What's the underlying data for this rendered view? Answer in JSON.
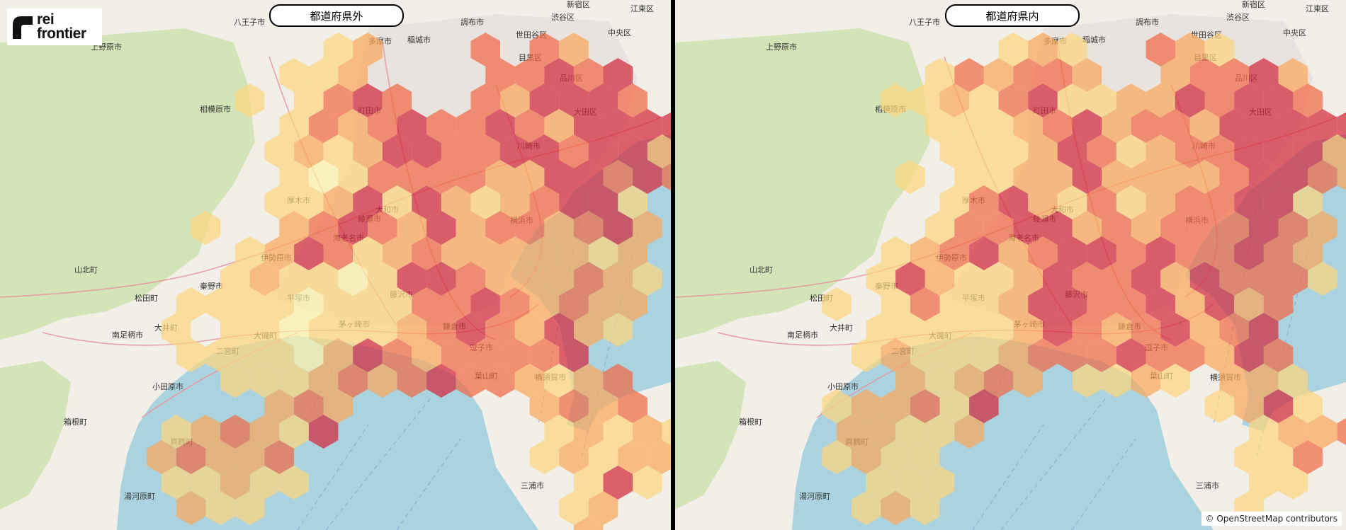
{
  "logo": {
    "line1": "rei",
    "line2": "frontier"
  },
  "panels": {
    "left": {
      "title": "都道府県外"
    },
    "right": {
      "title": "都道府県内"
    }
  },
  "attribution": "© OpenStreetMap contributors",
  "place_labels": [
    "八王子市",
    "上野原市",
    "相模原市",
    "町田市",
    "多摩市",
    "稲城市",
    "世田谷区",
    "目黒区",
    "品川区",
    "渋谷区",
    "新宿区",
    "中央区",
    "江東区",
    "調布市",
    "大田区",
    "川崎市",
    "横浜市",
    "海老名市",
    "大和市",
    "綾瀬市",
    "厚木市",
    "伊勢原市",
    "秦野市",
    "平塚市",
    "茅ヶ崎市",
    "藤沢市",
    "鎌倉市",
    "逗子市",
    "葉山町",
    "三浦市",
    "横須賀市",
    "小田原市",
    "南足柄市",
    "松田町",
    "大井町",
    "大磯町",
    "二宮町",
    "山北町",
    "湯河原町",
    "真鶴町",
    "箱根町"
  ],
  "colors": {
    "sea": "#aad3df",
    "land": "#f2efe9",
    "forest": "#cfe3b3",
    "urban": "#e6e0dd",
    "hex_scale": [
      "#fdf3a9",
      "#fcd57e",
      "#f9a75a",
      "#f06a44",
      "#d2283b"
    ]
  },
  "hex_levels_left": [
    [
      "",
      "",
      "",
      "",
      "",
      "",
      "1",
      "2",
      "",
      "",
      "",
      "3",
      "",
      "3",
      "2",
      "",
      "",
      "",
      "",
      "",
      ""
    ],
    [
      "",
      "",
      "",
      "",
      "1",
      "1",
      "2",
      "",
      "",
      "",
      "",
      "3",
      "3",
      "4",
      "3",
      "4",
      "",
      "",
      "",
      "",
      ""
    ],
    [
      "",
      "",
      "",
      "1",
      "",
      "1",
      "3",
      "4",
      "3",
      "",
      "",
      "3",
      "2",
      "4",
      "4",
      "4",
      "3",
      "",
      "",
      "",
      ""
    ],
    [
      "",
      "",
      "",
      "",
      "1",
      "3",
      "2",
      "3",
      "4",
      "3",
      "3",
      "4",
      "3",
      "2",
      "4",
      "4",
      "4",
      "4",
      "",
      "",
      ""
    ],
    [
      "",
      "",
      "",
      "",
      "1",
      "2",
      "1",
      "2",
      "4",
      "4",
      "3",
      "3",
      "4",
      "4",
      "3",
      "4",
      "4",
      "2",
      "2",
      "1",
      ""
    ],
    [
      "",
      "",
      "",
      "",
      "1",
      "0",
      "1",
      "3",
      "3",
      "3",
      "3",
      "2",
      "2",
      "4",
      "4",
      "3",
      "4",
      "3",
      "1",
      "",
      ""
    ],
    [
      "",
      "",
      "",
      "",
      "1",
      "1",
      "2",
      "4",
      "1",
      "4",
      "2",
      "1",
      "2",
      "3",
      "4",
      "4",
      "1",
      "",
      "",
      "",
      ""
    ],
    [
      "",
      "1",
      "",
      "",
      "2",
      "3",
      "4",
      "3",
      "2",
      "4",
      "2",
      "3",
      "3",
      "2",
      "3",
      "4",
      "2",
      "",
      "",
      "",
      ""
    ],
    [
      "",
      "",
      "",
      "1",
      "2",
      "4",
      "3",
      "1",
      "2",
      "3",
      "2",
      "2",
      "2",
      "2",
      "2",
      "1",
      "2",
      "",
      "",
      "",
      ""
    ],
    [
      "",
      "",
      "1",
      "2",
      "1",
      "1",
      "0",
      "1",
      "4",
      "4",
      "3",
      "2",
      "2",
      "2",
      "3",
      "2",
      "1",
      "",
      "",
      "",
      ""
    ],
    [
      "",
      "1",
      "1",
      "1",
      "1",
      "0",
      "1",
      "1",
      "1",
      "3",
      "3",
      "4",
      "3",
      "2",
      "3",
      "2",
      "2",
      "",
      "",
      "",
      ""
    ],
    [
      "1",
      "",
      "1",
      "1",
      "0",
      "1",
      "1",
      "1",
      "2",
      "3",
      "4",
      "3",
      "2",
      "4",
      "2",
      "1",
      "",
      "",
      "",
      "",
      ""
    ],
    [
      "",
      "1",
      "1",
      "1",
      "1",
      "0",
      "2",
      "4",
      "3",
      "2",
      "3",
      "3",
      "3",
      "3",
      "4",
      "",
      "",
      "",
      "",
      "",
      ""
    ],
    [
      "",
      "",
      "1",
      "1",
      "1",
      "2",
      "3",
      "2",
      "3",
      "4",
      "3",
      "3",
      "2",
      "1",
      "2",
      "3",
      "",
      "",
      "",
      "",
      ""
    ],
    [
      "",
      "",
      "",
      "",
      "2",
      "3",
      "2",
      "",
      "",
      "",
      "",
      "",
      "",
      "2",
      "3",
      "2",
      "3",
      "",
      "",
      "",
      ""
    ],
    [
      "1",
      "2",
      "3",
      "2",
      "1",
      "4",
      "",
      "",
      "",
      "",
      "",
      "",
      "",
      "1",
      "2",
      "1",
      "2",
      "1",
      "",
      "",
      ""
    ],
    [
      "2",
      "3",
      "2",
      "2",
      "3",
      "",
      "",
      "",
      "",
      "",
      "",
      "",
      "",
      "1",
      "2",
      "1",
      "2",
      "2",
      "",
      "",
      ""
    ],
    [
      "1",
      "1",
      "2",
      "1",
      "1",
      "",
      "",
      "",
      "",
      "",
      "",
      "",
      "",
      "",
      "1",
      "4",
      "1",
      "",
      "",
      "",
      ""
    ],
    [
      "",
      "2",
      "1",
      "1",
      "",
      "",
      "",
      "",
      "",
      "",
      "",
      "",
      "",
      "",
      "1",
      "2",
      "",
      "",
      "",
      "",
      ""
    ],
    [
      "",
      "",
      "",
      "",
      "",
      "",
      "",
      "",
      "",
      "",
      "",
      "",
      "",
      "",
      "2",
      "",
      "",
      "",
      "",
      "",
      ""
    ]
  ],
  "hex_levels_right": [
    [
      "",
      "",
      "",
      "",
      "",
      "",
      "1",
      "2",
      "1",
      "",
      "",
      "3",
      "2",
      "1",
      "",
      "",
      "",
      "",
      "",
      "",
      ""
    ],
    [
      "",
      "",
      "",
      "1",
      "3",
      "2",
      "3",
      "3",
      "2",
      "",
      "",
      "2",
      "3",
      "3",
      "4",
      "2",
      "",
      "",
      "",
      "",
      ""
    ],
    [
      "",
      "",
      "1",
      "1",
      "2",
      "1",
      "3",
      "4",
      "1",
      "1",
      "2",
      "2",
      "4",
      "3",
      "4",
      "4",
      "3",
      "",
      "",
      "",
      ""
    ],
    [
      "",
      "",
      "",
      "1",
      "1",
      "1",
      "2",
      "3",
      "4",
      "2",
      "3",
      "3",
      "2",
      "4",
      "4",
      "4",
      "4",
      "4",
      "",
      "",
      ""
    ],
    [
      "",
      "",
      "",
      "",
      "1",
      "1",
      "1",
      "2",
      "4",
      "3",
      "1",
      "2",
      "3",
      "3",
      "4",
      "4",
      "4",
      "2",
      "2",
      "1",
      ""
    ],
    [
      "",
      "",
      "1",
      "",
      "1",
      "1",
      "2",
      "2",
      "4",
      "2",
      "2",
      "2",
      "2",
      "3",
      "4",
      "4",
      "3",
      "2",
      "1",
      "",
      ""
    ],
    [
      "",
      "",
      "",
      "",
      "1",
      "3",
      "4",
      "2",
      "1",
      "3",
      "1",
      "2",
      "3",
      "3",
      "4",
      "4",
      "1",
      "",
      "",
      "",
      ""
    ],
    [
      "",
      "",
      "",
      "1",
      "3",
      "3",
      "4",
      "4",
      "2",
      "3",
      "2",
      "3",
      "3",
      "3",
      "4",
      "3",
      "2",
      "",
      "",
      "",
      ""
    ],
    [
      "",
      "",
      "1",
      "2",
      "3",
      "4",
      "2",
      "3",
      "4",
      "4",
      "3",
      "4",
      "3",
      "3",
      "4",
      "3",
      "2",
      "",
      "",
      "",
      ""
    ],
    [
      "",
      "1",
      "4",
      "2",
      "1",
      "1",
      "2",
      "4",
      "3",
      "3",
      "4",
      "2",
      "4",
      "3",
      "3",
      "3",
      "1",
      "",
      "",
      "",
      ""
    ],
    [
      "1",
      "",
      "1",
      "3",
      "1",
      "1",
      "2",
      "4",
      "4",
      "3",
      "3",
      "4",
      "2",
      "4",
      "2",
      "3",
      "",
      "",
      "",
      "",
      ""
    ],
    [
      "",
      "1",
      "1",
      "1",
      "1",
      "1",
      "2",
      "4",
      "3",
      "2",
      "3",
      "4",
      "2",
      "3",
      "4",
      "",
      "",
      "",
      "",
      "",
      ""
    ],
    [
      "",
      "1",
      "2",
      "1",
      "1",
      "1",
      "2",
      "3",
      "3",
      "3",
      "4",
      "3",
      "3",
      "2",
      "4",
      "3",
      "",
      "",
      "",
      "",
      ""
    ],
    [
      "",
      "",
      "2",
      "1",
      "2",
      "3",
      "2",
      "",
      "1",
      "1",
      "2",
      "1",
      "",
      "2",
      "2",
      "1",
      "",
      "",
      "",
      "",
      ""
    ],
    [
      "1",
      "2",
      "2",
      "3",
      "1",
      "4",
      "",
      "",
      "",
      "",
      "",
      "",
      "",
      "1",
      "2",
      "4",
      "1",
      "",
      "",
      "",
      ""
    ],
    [
      "2",
      "2",
      "1",
      "1",
      "2",
      "",
      "",
      "",
      "",
      "",
      "",
      "",
      "",
      "",
      "1",
      "2",
      "2",
      "3",
      "",
      "",
      ""
    ],
    [
      "1",
      "2",
      "1",
      "1",
      "",
      "",
      "",
      "",
      "",
      "",
      "",
      "",
      "",
      "",
      "1",
      "1",
      "3",
      "",
      "",
      "",
      ""
    ],
    [
      "",
      "1",
      "1",
      "1",
      "",
      "",
      "",
      "",
      "",
      "",
      "",
      "",
      "",
      "",
      "1",
      "1",
      "",
      "",
      "",
      "",
      ""
    ],
    [
      "",
      "1",
      "2",
      "1",
      "",
      "",
      "",
      "",
      "",
      "",
      "",
      "",
      "",
      "",
      "1",
      "",
      "",
      "",
      "",
      "",
      ""
    ]
  ]
}
